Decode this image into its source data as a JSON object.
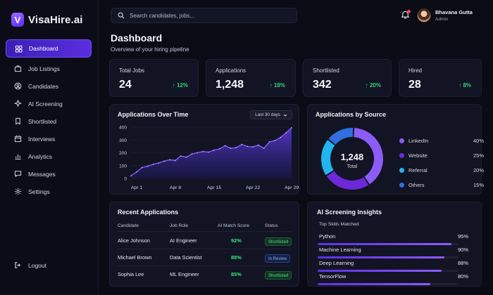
{
  "brand": {
    "name": "VisaHire.ai",
    "mark": "V"
  },
  "sidebar": {
    "items": [
      {
        "label": "Dashboard",
        "icon": "dashboard-icon",
        "active": true
      },
      {
        "label": "Job Listings",
        "icon": "briefcase-icon"
      },
      {
        "label": "Candidates",
        "icon": "user-icon"
      },
      {
        "label": "AI Screening",
        "icon": "sparkle-icon"
      },
      {
        "label": "Shortlisted",
        "icon": "bookmark-icon"
      },
      {
        "label": "Interviews",
        "icon": "calendar-icon"
      },
      {
        "label": "Analytics",
        "icon": "chart-icon"
      },
      {
        "label": "Messages",
        "icon": "chat-icon"
      },
      {
        "label": "Settings",
        "icon": "gear-icon"
      }
    ],
    "logout_label": "Logout"
  },
  "search": {
    "placeholder": "Search candidates, jobs..."
  },
  "user": {
    "name": "Bhavana Gutta",
    "role": "Admin"
  },
  "page": {
    "title": "Dashboard",
    "subtitle": "Overview of your hiring pipeline"
  },
  "stats": [
    {
      "label": "Total Jobs",
      "value": "24",
      "delta": "12%"
    },
    {
      "label": "Applications",
      "value": "1,248",
      "delta": "18%"
    },
    {
      "label": "Shortlisted",
      "value": "342",
      "delta": "20%"
    },
    {
      "label": "Hired",
      "value": "28",
      "delta": "8%"
    }
  ],
  "applications_chart": {
    "title": "Applications Over Time",
    "range_label": "Last 30 days"
  },
  "chart_data": [
    {
      "type": "area",
      "title": "Applications Over Time",
      "x_ticks": [
        "Apr 1",
        "Apr 8",
        "Apr 15",
        "Apr 22",
        "Apr 29"
      ],
      "y_ticks": [
        "0",
        "100",
        "200",
        "300",
        "400"
      ],
      "ylim": [
        0,
        400
      ],
      "x": [
        1,
        2,
        3,
        4,
        5,
        6,
        7,
        8,
        9,
        10,
        11,
        12,
        13,
        14,
        15,
        16,
        17,
        18,
        19,
        20,
        21,
        22,
        23,
        24,
        25,
        26,
        27,
        28,
        29,
        30
      ],
      "values": [
        20,
        50,
        85,
        95,
        110,
        120,
        135,
        145,
        140,
        175,
        165,
        190,
        200,
        210,
        205,
        220,
        230,
        255,
        235,
        240,
        265,
        250,
        245,
        260,
        235,
        285,
        295,
        320,
        355,
        395
      ],
      "grid": true
    },
    {
      "type": "pie",
      "title": "Applications by Source",
      "center_value": "1,248",
      "center_label": "Total",
      "slices": [
        {
          "name": "LinkedIn",
          "value": 40,
          "pct_label": "40%",
          "color": "#8b5cf6"
        },
        {
          "name": "Website",
          "value": 25,
          "pct_label": "25%",
          "color": "#6d28d9"
        },
        {
          "name": "Referral",
          "value": 20,
          "pct_label": "20%",
          "color": "#22b4f0"
        },
        {
          "name": "Others",
          "value": 15,
          "pct_label": "15%",
          "color": "#2f6fe0"
        }
      ]
    }
  ],
  "recent": {
    "title": "Recent Applications",
    "columns": [
      "Candidate",
      "Job Role",
      "AI Match Score",
      "Status"
    ],
    "rows": [
      {
        "candidate": "Alice Johnson",
        "role": "AI Engineer",
        "score": "92%",
        "status": "Shortlisted",
        "status_type": "short"
      },
      {
        "candidate": "Michael Brown",
        "role": "Data Scientist",
        "score": "88%",
        "status": "In Review",
        "status_type": "review"
      },
      {
        "candidate": "Sophia Lee",
        "role": "ML Engineer",
        "score": "85%",
        "status": "Shortlisted",
        "status_type": "short"
      }
    ]
  },
  "insights": {
    "title": "AI Screening Insights",
    "subtitle": "Top Skills Matched",
    "skills": [
      {
        "name": "Python",
        "pct_label": "95%",
        "value": 0.95
      },
      {
        "name": "Machine Learning",
        "pct_label": "90%",
        "value": 0.9
      },
      {
        "name": "Deep Learning",
        "pct_label": "88%",
        "value": 0.88
      },
      {
        "name": "TensorFlow",
        "pct_label": "80%",
        "value": 0.8
      }
    ]
  },
  "colors": {
    "accent": "#5a2ee0",
    "positive": "#2fd67a",
    "line": "#8a5cff"
  }
}
